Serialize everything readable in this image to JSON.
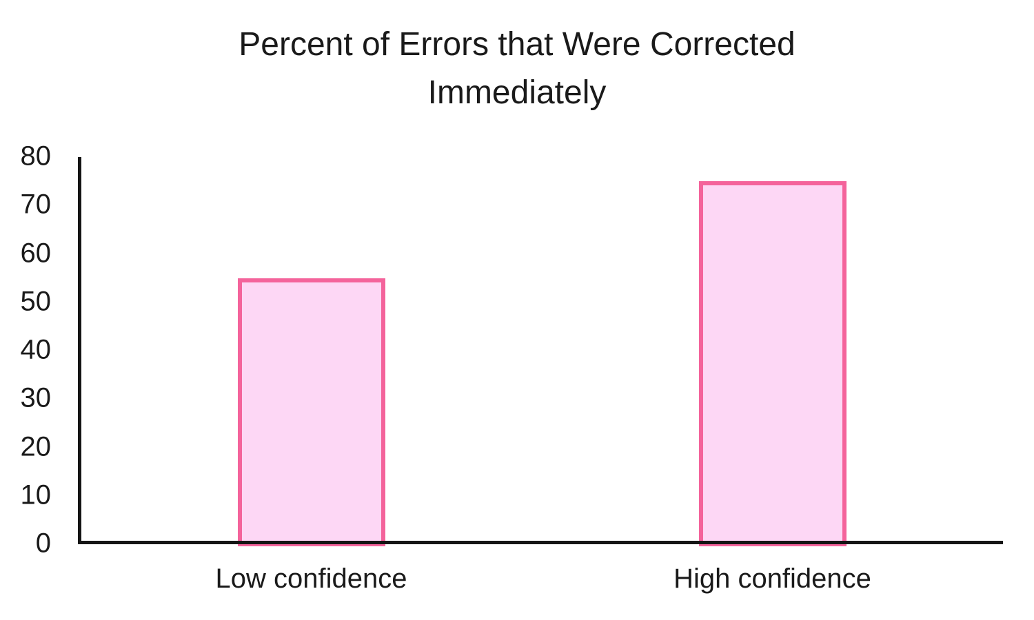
{
  "chart_data": {
    "type": "bar",
    "title": "Percent of Errors that Were Corrected Immediately",
    "categories": [
      "Low confidence",
      "High confidence"
    ],
    "values": [
      55,
      75
    ],
    "xlabel": "",
    "ylabel": "",
    "ylim": [
      0,
      80
    ],
    "yticks": [
      0,
      10,
      20,
      30,
      40,
      50,
      60,
      70,
      80
    ],
    "grid": false,
    "legend": "none",
    "colors": {
      "bar_fill": "#fdd7f5",
      "bar_border": "#f4639b",
      "axis": "#151515",
      "text": "#1a1a1a",
      "background": "#ffffff"
    }
  }
}
